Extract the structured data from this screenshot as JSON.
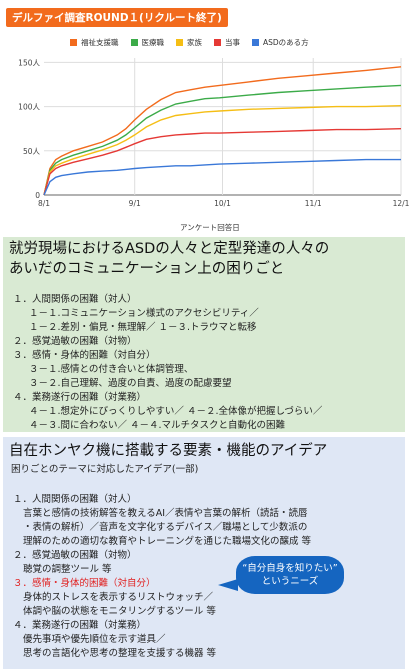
{
  "chart_data": {
    "type": "line",
    "title": "デルファイ調査ROUND１(リクルート終了)",
    "xlabel": "アンケート回答日",
    "ylabel": "",
    "x_ticks": [
      "8/1",
      "9/1",
      "10/1",
      "11/1",
      "12/1"
    ],
    "y_ticks": [
      "0",
      "50人",
      "100人",
      "150人"
    ],
    "ylim": [
      0,
      155
    ],
    "grid": true,
    "legend_position": "top",
    "x": [
      0,
      2,
      4,
      6,
      10,
      15,
      20,
      25,
      28,
      31,
      35,
      40,
      45,
      50,
      55,
      60,
      70,
      80,
      90,
      100,
      110,
      122
    ],
    "series": [
      {
        "name": "福祉支援職",
        "color": "#f26b1d",
        "values": [
          0,
          30,
          40,
          44,
          50,
          55,
          60,
          68,
          75,
          85,
          97,
          108,
          116,
          119,
          122,
          124,
          128,
          132,
          135,
          138,
          141,
          145
        ]
      },
      {
        "name": "医療職",
        "color": "#3cab49",
        "values": [
          0,
          28,
          36,
          40,
          45,
          50,
          55,
          62,
          68,
          76,
          87,
          96,
          103,
          106,
          109,
          110,
          113,
          116,
          118,
          120,
          122,
          124
        ]
      },
      {
        "name": "家族",
        "color": "#f5be15",
        "values": [
          0,
          26,
          33,
          36,
          41,
          46,
          51,
          57,
          62,
          68,
          77,
          85,
          90,
          92,
          94,
          95,
          97,
          98,
          99,
          100,
          100,
          101
        ]
      },
      {
        "name": "当事",
        "color": "#e53935",
        "values": [
          0,
          24,
          30,
          33,
          37,
          41,
          45,
          50,
          54,
          58,
          63,
          66,
          68,
          69,
          70,
          70,
          71,
          72,
          73,
          74,
          74,
          75
        ]
      },
      {
        "name": "ASDのある方",
        "color": "#3a78d8",
        "values": [
          0,
          15,
          20,
          22,
          24,
          26,
          27,
          28,
          29,
          30,
          31,
          32,
          33,
          33,
          34,
          35,
          36,
          37,
          38,
          39,
          40,
          40
        ]
      }
    ]
  },
  "section1": {
    "title_line1": "就労現場におけるASDの人々と定型発達の人々の",
    "title_line2": "あいだのコミュニケーション上の困りごと",
    "lines": [
      "１．人間関係の困難（対人）",
      "１－１.コミュニケーション様式のアクセシビリティ／",
      "１－２.差別・偏見・無理解／ １－３.トラウマと転移",
      "２．感覚過敏の困難（対物）",
      "３．感情・身体的困難（対自分）",
      "３－１.感情との付き合いと体調管理、",
      "３－２.自己理解、過度の自責、過度の配慮要望",
      "４．業務遂行の困難（対業務）",
      "４－１.想定外にびっくりしやすい／ ４－２.全体像が把握しづらい／",
      "４－３.間に合わない／ ４－４.マルチタスクと自動化の困難"
    ]
  },
  "section2": {
    "title": "自在ホンヤク機に搭載する要素・機能のアイデア",
    "subtitle": "困りごとのテーマに対応したアイデア(一部)",
    "lines": [
      "１．人間関係の困難（対人）",
      "言葉と感情の技術解答を教えるAI／表情や言葉の解析（読話・読唇",
      "・表情の解析）／音声を文字化するデバイス／職場として少数派の",
      "理解のための適切な教育やトレーニングを通じた職場文化の醸成 等",
      "２．感覚過敏の困難（対物）",
      "聴覚の調整ツール 等",
      "３．感情・身体的困難（対自分）",
      "身体的ストレスを表示するリストウォッチ／",
      "体調や脳の状態をモニタリングするツール 等",
      "４．業務遂行の困難（対業務）",
      "優先事項や優先順位を示す道具／",
      "思考の言語化や思考の整理を支援する機器 等"
    ],
    "callout_line1": "“自分自身を知りたい”",
    "callout_line2": "というニーズ"
  }
}
